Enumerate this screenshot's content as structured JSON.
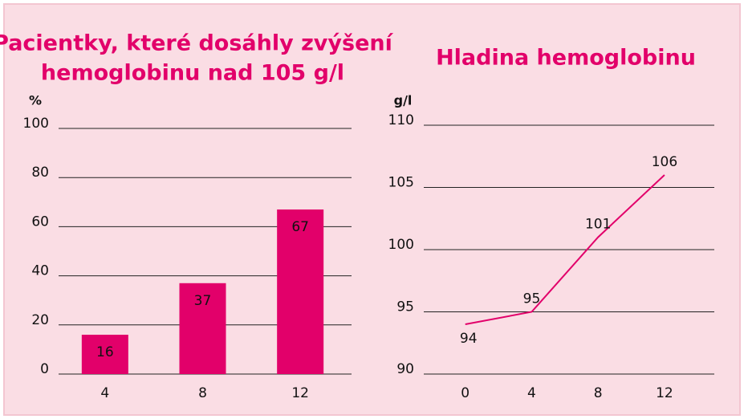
{
  "chart_data": [
    {
      "type": "bar",
      "title": [
        "Pacientky, které dosáhly zvýšení",
        "hemoglobinu nad 105 g/l"
      ],
      "y_label": "%",
      "categories": [
        "4",
        "8",
        "12"
      ],
      "values": [
        16,
        37,
        67
      ],
      "color": "#e2006a",
      "ylim": [
        0,
        100
      ],
      "yticks": [
        0,
        20,
        40,
        60,
        80,
        100
      ],
      "grid": true
    },
    {
      "type": "line",
      "title": "Hladina hemoglobinu",
      "y_label": "g/l",
      "x": [
        0,
        4,
        8,
        12
      ],
      "values": [
        94,
        95,
        101,
        106
      ],
      "color": "#e2006a",
      "xlim": [
        -2.5,
        15
      ],
      "xticks": [
        0,
        4,
        8,
        12
      ],
      "ylim": [
        90,
        110
      ],
      "yticks": [
        90,
        95,
        100,
        105,
        110
      ],
      "grid": true
    }
  ]
}
